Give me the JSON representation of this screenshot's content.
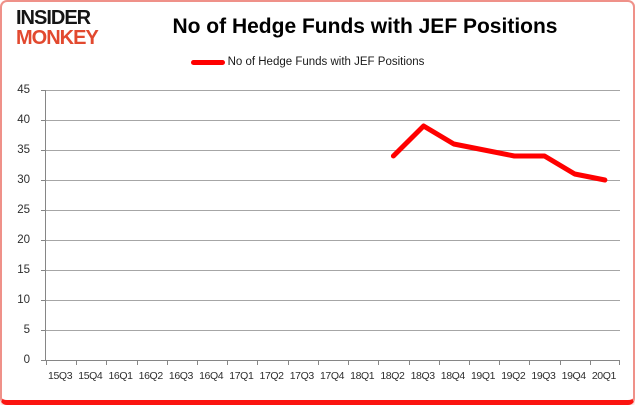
{
  "logo": {
    "line1": "INSIDER",
    "line2": "MONKEY"
  },
  "header": {
    "title": "No of Hedge Funds with JEF Positions"
  },
  "legend": {
    "label": "No of Hedge Funds with JEF Positions",
    "swatch_color": "#ff0000"
  },
  "colors": {
    "line": "#ff0000",
    "gridline": "#a6a6a6",
    "axis": "#868686",
    "axis_text": "#2e2e2e",
    "logo_accent": "#e2492f",
    "border": "#ef9189",
    "border_bottom": "#fb1410"
  },
  "chart_data": {
    "type": "line",
    "title": "No of Hedge Funds with JEF Positions",
    "categories": [
      "15Q3",
      "15Q4",
      "16Q1",
      "16Q2",
      "16Q3",
      "16Q4",
      "17Q1",
      "17Q2",
      "17Q3",
      "17Q4",
      "18Q1",
      "18Q2",
      "18Q3",
      "18Q4",
      "19Q1",
      "19Q2",
      "19Q3",
      "19Q4",
      "20Q1"
    ],
    "series": [
      {
        "name": "No of Hedge Funds with JEF Positions",
        "color": "#ff0000",
        "values": [
          null,
          null,
          null,
          null,
          null,
          null,
          null,
          null,
          null,
          null,
          null,
          34,
          39,
          36,
          35,
          34,
          34,
          31,
          30
        ]
      }
    ],
    "xlabel": "",
    "ylabel": "",
    "ylim": [
      0,
      45
    ],
    "ytick_step": 5,
    "grid": true,
    "legend_position": "top"
  }
}
